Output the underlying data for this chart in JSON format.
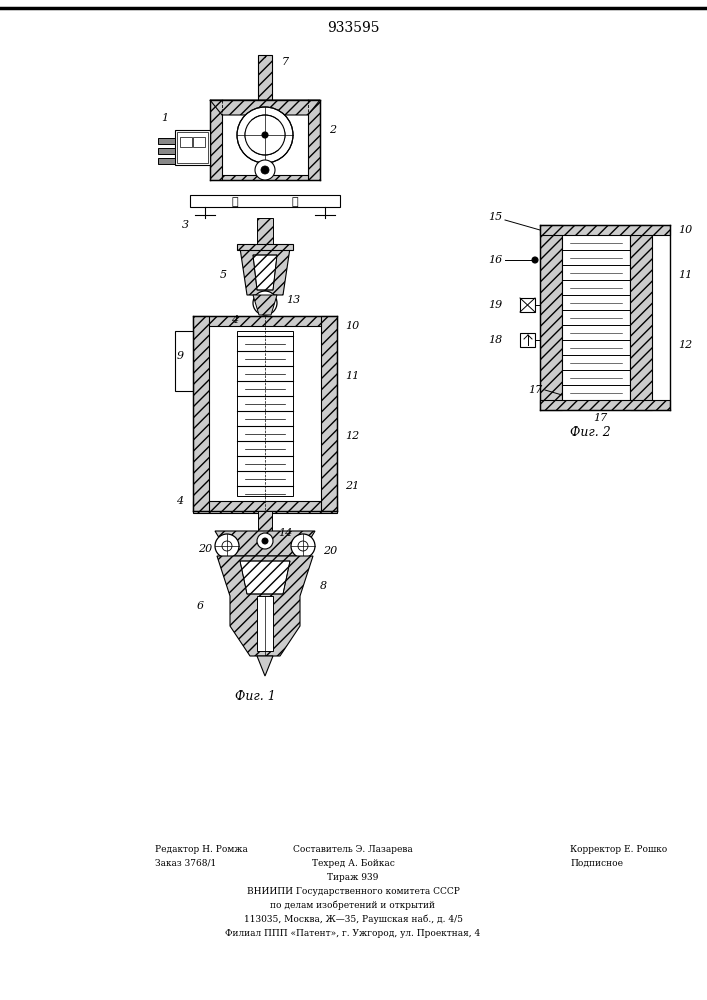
{
  "patent_number": "933595",
  "fig1_label": "Фиг. 1",
  "fig2_label": "Фиг. 2",
  "footer_col1_line1": "Редактор Н. Ромжа",
  "footer_col1_line2": "Заказ 3768/1",
  "footer_col2_line1": "Составитель Э. Лазарева",
  "footer_col2_line2": "Техред А. Бойкас",
  "footer_col2_line3": "Тираж 939",
  "footer_col3_line1": "Корректор Е. Рошко",
  "footer_col3_line2": "Подписное",
  "footer_center1": "ВНИИПИ Государственного комитета СССР",
  "footer_center2": "по делам изобретений и открытий",
  "footer_center3": "113035, Москва, Ж—35, Раушская наб., д. 4/5",
  "footer_center4": "Филиал ППП «Патент», г. Ужгород, ул. Проектная, 4",
  "background_color": "#ffffff",
  "line_color": "#000000"
}
